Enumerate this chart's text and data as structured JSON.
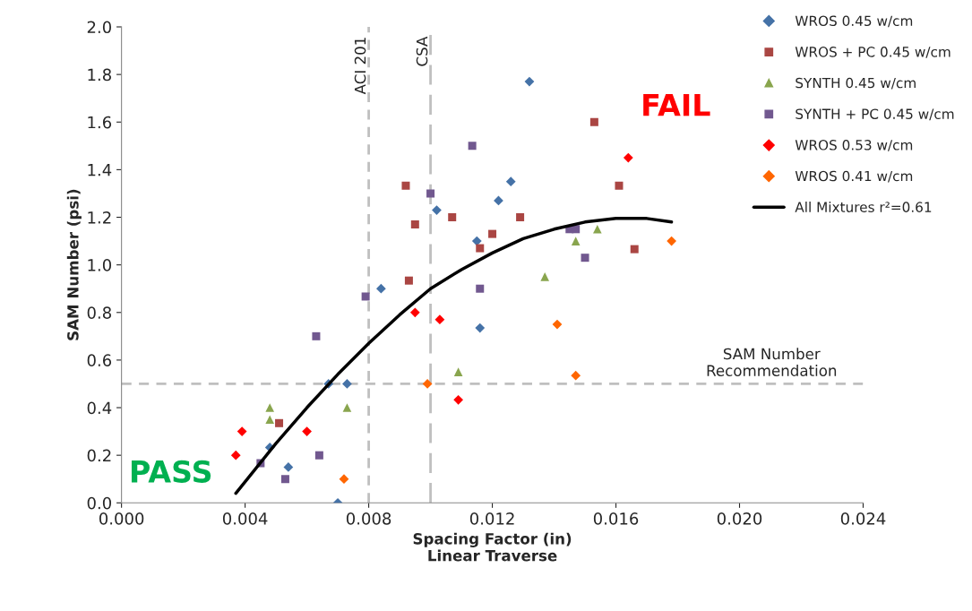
{
  "chart_data": {
    "type": "scatter",
    "xlabel": "Spacing Factor (in)\nLinear Traverse",
    "ylabel": "SAM Number (psi)",
    "xlim": [
      0,
      0.024
    ],
    "ylim": [
      0,
      2.0
    ],
    "xticks": [
      {
        "value": 0,
        "label": "0.000"
      },
      {
        "value": 0.004,
        "label": "0.004"
      },
      {
        "value": 0.008,
        "label": "0.008"
      },
      {
        "value": 0.012,
        "label": "0.012"
      },
      {
        "value": 0.016,
        "label": "0.016"
      },
      {
        "value": 0.02,
        "label": "0.020"
      },
      {
        "value": 0.024,
        "label": "0.024"
      }
    ],
    "yticks": [
      {
        "value": 0,
        "label": "0.0"
      },
      {
        "value": 0.2,
        "label": "0.2"
      },
      {
        "value": 0.4,
        "label": "0.4"
      },
      {
        "value": 0.6,
        "label": "0.6"
      },
      {
        "value": 0.8,
        "label": "0.8"
      },
      {
        "value": 1.0,
        "label": "1.0"
      },
      {
        "value": 1.2,
        "label": "1.2"
      },
      {
        "value": 1.4,
        "label": "1.4"
      },
      {
        "value": 1.6,
        "label": "1.6"
      },
      {
        "value": 1.8,
        "label": "1.8"
      },
      {
        "value": 2.0,
        "label": "2.0"
      }
    ],
    "grid": false,
    "legend": "top right",
    "series": [
      {
        "name": "WROS 0.45 w/cm",
        "color": "#4572a7",
        "marker": "diamond",
        "x": [
          0.0132,
          0.0126,
          0.0122,
          0.0102,
          0.0115,
          0.0084,
          0.0116,
          0.0067,
          0.0073,
          0.0048,
          0.0054,
          0.007
        ],
        "values": [
          1.77,
          1.35,
          1.27,
          1.23,
          1.1,
          0.9,
          0.735,
          0.5,
          0.5,
          0.233,
          0.15,
          0.0
        ]
      },
      {
        "name": "WROS + PC 0.45 w/cm",
        "color": "#aa4643",
        "marker": "square",
        "x": [
          0.0153,
          0.0092,
          0.0095,
          0.0107,
          0.0129,
          0.012,
          0.0116,
          0.0093,
          0.0161,
          0.0166,
          0.0051
        ],
        "values": [
          1.6,
          1.333,
          1.17,
          1.2,
          1.2,
          1.13,
          1.07,
          0.934,
          1.333,
          1.066,
          0.335
        ]
      },
      {
        "name": "SYNTH 0.45 w/cm",
        "color": "#89a54e",
        "marker": "triangle",
        "x": [
          0.0048,
          0.0048,
          0.0073,
          0.0109,
          0.0137,
          0.0147,
          0.0154
        ],
        "values": [
          0.4,
          0.35,
          0.4,
          0.55,
          0.95,
          1.1,
          1.15
        ]
      },
      {
        "name": "SYNTH + PC 0.45 w/cm",
        "color": "#71588f",
        "marker": "square",
        "x": [
          0.01135,
          0.01,
          0.0079,
          0.0116,
          0.0145,
          0.0147,
          0.015,
          0.0063,
          0.0045,
          0.0064,
          0.0053
        ],
        "values": [
          1.5,
          1.3,
          0.867,
          0.9,
          1.15,
          1.15,
          1.03,
          0.7,
          0.167,
          0.2,
          0.1
        ]
      },
      {
        "name": "WROS 0.53 w/cm",
        "color": "#ff0000",
        "marker": "diamond",
        "x": [
          0.0164,
          0.0095,
          0.0103,
          0.0109,
          0.0039,
          0.0037,
          0.006
        ],
        "values": [
          1.45,
          0.8,
          0.77,
          0.433,
          0.3,
          0.2,
          0.3
        ]
      },
      {
        "name": "WROS 0.41 w/cm",
        "color": "#ff6600",
        "marker": "diamond",
        "x": [
          0.0178,
          0.0141,
          0.0147,
          0.0099,
          0.0072
        ],
        "values": [
          1.1,
          0.75,
          0.535,
          0.5,
          0.1
        ]
      },
      {
        "name": "All Mixtures r²=0.61",
        "type": "line",
        "color": "#000000",
        "marker": "none",
        "line_style": "solid",
        "x": [
          0.0037,
          0.005,
          0.006,
          0.007,
          0.008,
          0.009,
          0.01,
          0.011,
          0.012,
          0.013,
          0.014,
          0.015,
          0.016,
          0.017,
          0.0178
        ],
        "values": [
          0.04,
          0.25,
          0.4,
          0.54,
          0.67,
          0.79,
          0.9,
          0.98,
          1.05,
          1.11,
          1.15,
          1.18,
          1.195,
          1.195,
          1.18
        ]
      }
    ],
    "ref_lines": [
      {
        "axis": "x",
        "value": 0.008,
        "label": "ACI 201",
        "color": "#bfbfbf",
        "line_style": "dotted"
      },
      {
        "axis": "x",
        "value": 0.01,
        "label": "CSA",
        "color": "#bfbfbf",
        "line_style": "dashed"
      },
      {
        "axis": "y",
        "value": 0.5,
        "label": "SAM Number\nRecommendation",
        "color": "#bfbfbf",
        "line_style": "dotted"
      }
    ],
    "annotations": [
      "PASS",
      "FAIL"
    ]
  }
}
